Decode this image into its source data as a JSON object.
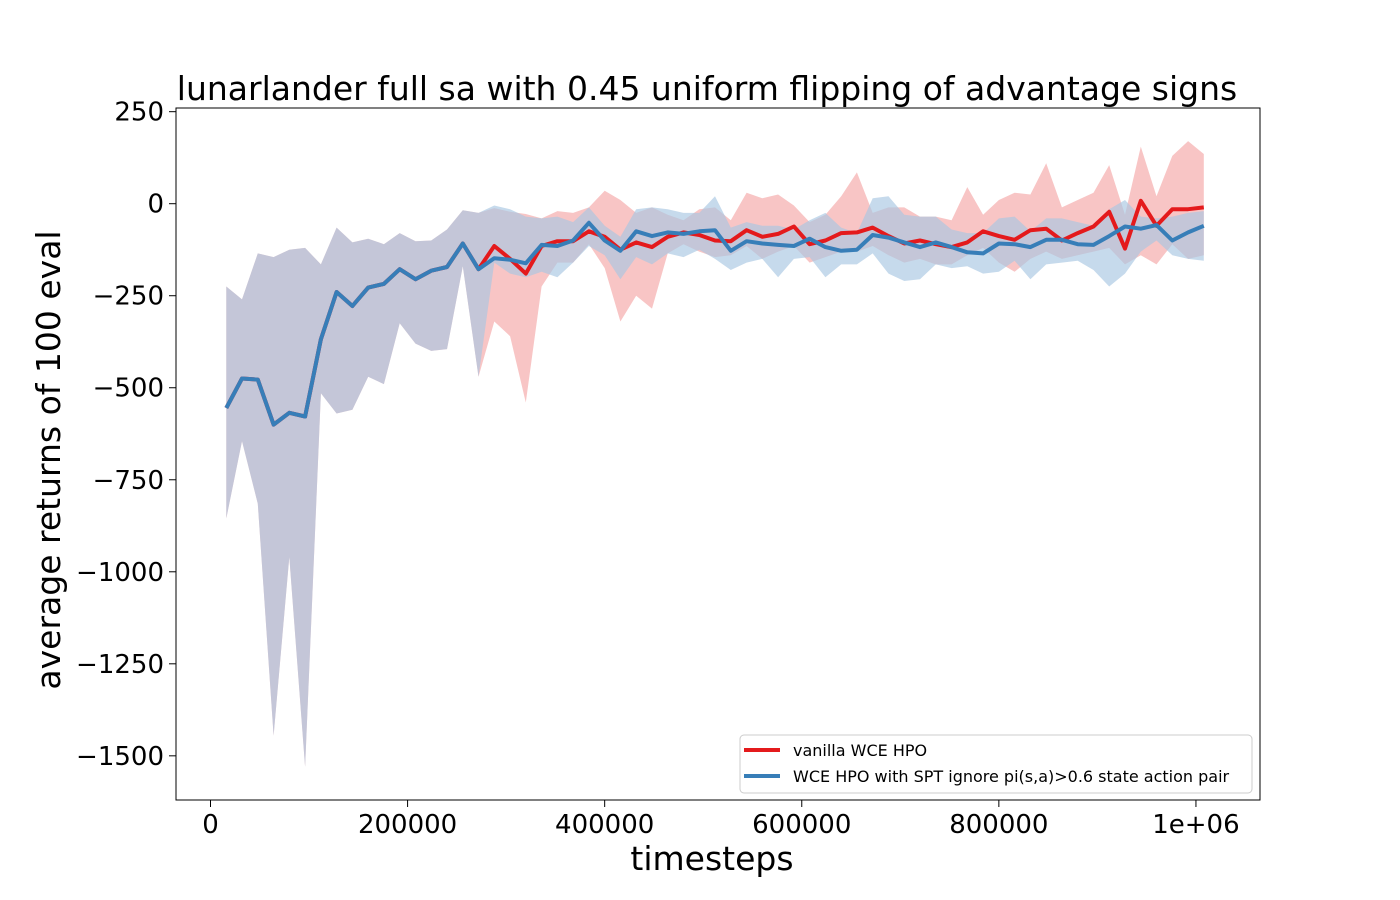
{
  "chart_data": {
    "type": "line",
    "title": "lunarlander full sa with 0.45 uniform flipping of advantage signs",
    "xlabel": "timesteps",
    "ylabel": "average returns of 100 eval",
    "xlim": [
      -35000,
      1065000
    ],
    "ylim": [
      -1620,
      260
    ],
    "xticks": [
      0,
      200000,
      400000,
      600000,
      800000,
      1000000
    ],
    "xtick_labels": [
      "0",
      "200000",
      "400000",
      "600000",
      "800000",
      "1e+06"
    ],
    "yticks": [
      250,
      0,
      -250,
      -500,
      -750,
      -1000,
      -1250,
      -1500
    ],
    "ytick_labels": [
      "250",
      "0",
      "−250",
      "−500",
      "−750",
      "−1000",
      "−1250",
      "−1500"
    ],
    "grid": false,
    "legend_position": "lower right",
    "x": [
      16000,
      32000,
      48000,
      64000,
      80000,
      96000,
      112000,
      128000,
      144000,
      160000,
      176000,
      192000,
      208000,
      224000,
      240000,
      256000,
      272000,
      288000,
      304000,
      320000,
      336000,
      352000,
      368000,
      384000,
      400000,
      416000,
      432000,
      448000,
      464000,
      480000,
      496000,
      512000,
      528000,
      544000,
      560000,
      576000,
      592000,
      608000,
      624000,
      640000,
      656000,
      672000,
      688000,
      704000,
      720000,
      736000,
      752000,
      768000,
      784000,
      800000,
      816000,
      832000,
      848000,
      864000,
      880000,
      896000,
      912000,
      928000,
      944000,
      960000,
      976000,
      992000,
      1008000
    ],
    "series": [
      {
        "name": "vanilla WCE HPO",
        "color": "#e41a1c",
        "values": [
          -555,
          -475,
          -478,
          -600,
          -568,
          -578,
          -368,
          -240,
          -278,
          -228,
          -218,
          -178,
          -205,
          -182,
          -172,
          -108,
          -178,
          -115,
          -150,
          -190,
          -115,
          -102,
          -102,
          -75,
          -90,
          -125,
          -105,
          -118,
          -90,
          -78,
          -85,
          -100,
          -102,
          -72,
          -90,
          -82,
          -62,
          -110,
          -100,
          -80,
          -78,
          -65,
          -88,
          -108,
          -100,
          -110,
          -118,
          -105,
          -75,
          -88,
          -98,
          -72,
          -68,
          -100,
          -80,
          -62,
          -22,
          -122,
          8,
          -60,
          -15,
          -15,
          -10
        ],
        "upper": [
          -225,
          -260,
          -135,
          -145,
          -125,
          -120,
          -165,
          -65,
          -105,
          -95,
          -110,
          -80,
          -102,
          -100,
          -70,
          -18,
          -25,
          -12,
          -22,
          -28,
          -40,
          -20,
          -25,
          -10,
          35,
          10,
          -25,
          -10,
          -30,
          -45,
          -15,
          -10,
          -45,
          30,
          15,
          25,
          -5,
          -50,
          -30,
          20,
          85,
          -25,
          -10,
          -10,
          -35,
          -35,
          -45,
          45,
          -30,
          10,
          30,
          25,
          110,
          -10,
          10,
          30,
          105,
          -30,
          155,
          20,
          130,
          170,
          135
        ],
        "lower": [
          -855,
          -645,
          -815,
          -1445,
          -960,
          -1530,
          -515,
          -570,
          -560,
          -470,
          -490,
          -325,
          -380,
          -400,
          -395,
          -170,
          -470,
          -320,
          -360,
          -540,
          -225,
          -160,
          -160,
          -110,
          -175,
          -320,
          -250,
          -285,
          -135,
          -110,
          -130,
          -145,
          -140,
          -115,
          -150,
          -130,
          -115,
          -160,
          -145,
          -130,
          -130,
          -115,
          -140,
          -160,
          -150,
          -165,
          -165,
          -140,
          -120,
          -160,
          -185,
          -150,
          -130,
          -150,
          -140,
          -130,
          -120,
          -165,
          -140,
          -165,
          -110,
          -150,
          -140
        ]
      },
      {
        "name": "WCE HPO with SPT ignore pi(s,a)>0.6 state action pair",
        "color": "#377eb8",
        "values": [
          -555,
          -475,
          -478,
          -600,
          -568,
          -578,
          -368,
          -240,
          -278,
          -228,
          -218,
          -178,
          -205,
          -182,
          -172,
          -108,
          -178,
          -148,
          -152,
          -162,
          -112,
          -115,
          -100,
          -52,
          -100,
          -128,
          -75,
          -88,
          -78,
          -82,
          -75,
          -72,
          -128,
          -102,
          -108,
          -112,
          -115,
          -95,
          -118,
          -128,
          -125,
          -85,
          -92,
          -105,
          -118,
          -105,
          -118,
          -132,
          -135,
          -108,
          -110,
          -118,
          -98,
          -98,
          -110,
          -112,
          -88,
          -62,
          -68,
          -58,
          -100,
          -78,
          -60
        ],
        "upper": [
          -225,
          -260,
          -135,
          -145,
          -125,
          -120,
          -165,
          -65,
          -105,
          -95,
          -110,
          -80,
          -102,
          -100,
          -70,
          -18,
          -25,
          -5,
          -15,
          -35,
          -40,
          -35,
          -50,
          -10,
          -60,
          -90,
          -15,
          -10,
          -15,
          -25,
          -25,
          20,
          -65,
          -50,
          -60,
          -60,
          -70,
          -45,
          -25,
          -65,
          -80,
          15,
          20,
          -30,
          -35,
          -35,
          -70,
          -80,
          -80,
          -40,
          -35,
          -75,
          -40,
          -40,
          -50,
          -60,
          -15,
          10,
          -35,
          -40,
          -35,
          -25,
          -20
        ],
        "lower": [
          -855,
          -645,
          -815,
          -1445,
          -960,
          -1530,
          -515,
          -570,
          -560,
          -470,
          -490,
          -325,
          -380,
          -400,
          -395,
          -170,
          -470,
          -160,
          -190,
          -200,
          -185,
          -200,
          -160,
          -115,
          -140,
          -205,
          -145,
          -165,
          -135,
          -145,
          -125,
          -150,
          -180,
          -160,
          -150,
          -200,
          -150,
          -145,
          -200,
          -165,
          -165,
          -135,
          -190,
          -210,
          -205,
          -165,
          -175,
          -170,
          -190,
          -185,
          -155,
          -205,
          -165,
          -160,
          -155,
          -180,
          -225,
          -190,
          -130,
          -100,
          -140,
          -150,
          -155
        ]
      }
    ]
  }
}
